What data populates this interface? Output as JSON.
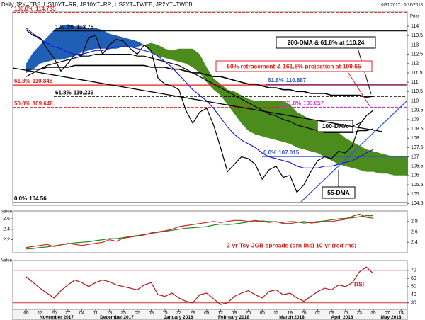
{
  "chart_data": [
    {
      "type": "line",
      "title": "Daily JPY=EBS, US10YT=RR, JP10YT=RR, US2YT=TWEB, JP2YT=TWEB",
      "subtitle": "10/31/2017 - 5/16/2018",
      "y_label": "Price",
      "categories": [
        "06",
        null,
        "13",
        null,
        "20",
        null,
        "27",
        null,
        "04",
        null,
        "11",
        null,
        "18",
        null,
        "25",
        null,
        "02",
        null,
        "08",
        null,
        "15",
        null,
        "22",
        null,
        "29",
        null,
        "05",
        null,
        "12",
        null,
        "19",
        null,
        "26",
        null,
        "05",
        null,
        "12",
        null,
        "19",
        null,
        "26",
        null,
        "02",
        null,
        "09",
        null,
        "16",
        null,
        "23",
        null,
        "30",
        null,
        "07",
        null,
        "14",
        null
      ],
      "months": [
        "November 2017",
        "December 2017",
        "January 2018",
        "February 2018",
        "March 2018",
        "April 2018",
        "May 2018"
      ],
      "ylim": [
        104.4,
        114.8
      ],
      "yticks": [
        104.5,
        105,
        105.5,
        106,
        106.5,
        107,
        107.5,
        108,
        108.5,
        109,
        109.5,
        110,
        110.5,
        111,
        111.5,
        112,
        112.5,
        113,
        113.5,
        114
      ],
      "series": [
        {
          "color": "#000000",
          "values": [
            113.8,
            113.5,
            113.4,
            112.8,
            112.3,
            111.6,
            112.0,
            112.5,
            112.4,
            113.4,
            113.5,
            112.5,
            113.0,
            113.3,
            113.2,
            112.8,
            112.5,
            113.0,
            112.7,
            111.2,
            110.9,
            110.8,
            110.6,
            109.5,
            108.8,
            109.4,
            109.6,
            108.7,
            107.5,
            106.2,
            106.6,
            107.0,
            106.9,
            106.6,
            105.8,
            106.3,
            106.5,
            105.9,
            106.0,
            105.1,
            105.5,
            106.2,
            106.8,
            107.0,
            106.9,
            107.3,
            107.2,
            107.6,
            108.7,
            109.2,
            109.5,
            null,
            null,
            null,
            null,
            null
          ]
        },
        {
          "name": "55-DMA",
          "color": "#1a1adc",
          "values": [
            113.9,
            113.6,
            113.3,
            113.1,
            112.9,
            112.8,
            112.6,
            112.5,
            112.5,
            112.6,
            112.7,
            112.7,
            112.8,
            112.9,
            112.9,
            112.9,
            112.8,
            112.7,
            112.6,
            112.4,
            112.1,
            111.8,
            111.4,
            111.0,
            110.6,
            110.3,
            110.0,
            109.6,
            109.1,
            108.6,
            108.2,
            107.9,
            107.7,
            107.5,
            107.2,
            107.0,
            106.9,
            106.8,
            106.7,
            106.5,
            106.4,
            106.4,
            106.4,
            106.5,
            106.5,
            106.6,
            106.7,
            106.8,
            107.0,
            107.2,
            107.4,
            null,
            null,
            null,
            null,
            null
          ]
        },
        {
          "name": "100-DMA",
          "color": "#000000",
          "values": [
            111.3,
            111.5,
            111.7,
            111.9,
            112.0,
            112.1,
            112.2,
            112.3,
            112.4,
            112.4,
            112.5,
            112.5,
            112.5,
            112.5,
            112.5,
            112.5,
            112.4,
            112.4,
            112.3,
            112.2,
            112.1,
            112.0,
            111.9,
            111.7,
            111.5,
            111.3,
            111.1,
            110.9,
            110.7,
            110.5,
            110.3,
            110.1,
            109.9,
            109.7,
            109.5,
            109.3,
            109.2,
            109.0,
            108.9,
            108.7,
            108.6,
            108.5,
            108.4,
            108.3,
            108.3,
            108.3,
            108.3,
            108.3,
            108.4,
            108.4,
            108.5,
            null,
            null,
            null,
            null,
            null
          ]
        },
        {
          "color": "#000000",
          "values": [
            111.7,
            111.7,
            111.7,
            111.8,
            111.8,
            111.8,
            111.8,
            111.9,
            111.9,
            111.9,
            111.9,
            111.9,
            111.9,
            111.9,
            111.9,
            111.9,
            111.9,
            111.9,
            111.8,
            111.8,
            111.8,
            111.7,
            111.7,
            111.6,
            111.5,
            111.5,
            111.4,
            111.3,
            111.3,
            111.2,
            111.1,
            111.0,
            110.9,
            110.9,
            110.8,
            110.7,
            110.7,
            110.6,
            110.6,
            110.5,
            110.5,
            110.4,
            110.4,
            110.4,
            110.3,
            110.3,
            110.3,
            110.3,
            110.3,
            110.2,
            110.24,
            null,
            null,
            null,
            null,
            null
          ]
        }
      ],
      "clouds": [
        {
          "color": "#1f5fb5",
          "upper": [
            112.0,
            112.6,
            113.0,
            113.4,
            113.8,
            114.0,
            114.1,
            114.0,
            114.0,
            113.9,
            113.9,
            113.8,
            113.6,
            113.5,
            113.4,
            113.3,
            113.2,
            113.0,
            null,
            null,
            null,
            null,
            null,
            null,
            null,
            null,
            null,
            null,
            null,
            null,
            null,
            null,
            null,
            null,
            null,
            null,
            null,
            null,
            null,
            null,
            null,
            null,
            null,
            null,
            null,
            null,
            null,
            null,
            null,
            null,
            null,
            null,
            null,
            null,
            null,
            null
          ],
          "lower": [
            111.5,
            111.7,
            112.0,
            112.1,
            112.2,
            112.2,
            112.3,
            112.4,
            112.6,
            112.7,
            112.8,
            112.8,
            112.8,
            112.8,
            112.9,
            112.9,
            112.9,
            113.0,
            null,
            null,
            null,
            null,
            null,
            null,
            null,
            null,
            null,
            null,
            null,
            null,
            null,
            null,
            null,
            null,
            null,
            null,
            null,
            null,
            null,
            null,
            null,
            null,
            null,
            null,
            null,
            null,
            null,
            null,
            null,
            null,
            null,
            null,
            null,
            null,
            null,
            null
          ]
        },
        {
          "color": "#4c8c1c",
          "upper": [
            null,
            null,
            null,
            null,
            null,
            null,
            null,
            null,
            null,
            null,
            null,
            null,
            null,
            null,
            null,
            null,
            null,
            113.0,
            113.1,
            113.0,
            112.8,
            112.7,
            112.8,
            112.8,
            112.8,
            112.5,
            111.8,
            111.2,
            110.9,
            110.6,
            110.5,
            110.3,
            110.1,
            110.0,
            110.0,
            110.0,
            110.0,
            110.0,
            109.8,
            109.4,
            109.2,
            109.0,
            108.9,
            108.7,
            108.5,
            108.3,
            108.0,
            107.8,
            107.6,
            107.4,
            107.3,
            107.2,
            107.1,
            107.0,
            107.0,
            107.0
          ],
          "lower": [
            null,
            null,
            null,
            null,
            null,
            null,
            null,
            null,
            null,
            null,
            null,
            null,
            null,
            null,
            null,
            null,
            null,
            113.0,
            112.6,
            112.4,
            112.3,
            112.2,
            112.1,
            112.0,
            111.8,
            111.5,
            111.0,
            110.6,
            110.3,
            109.8,
            109.3,
            108.8,
            108.4,
            108.2,
            108.1,
            108.0,
            107.9,
            107.8,
            107.7,
            107.5,
            107.4,
            107.3,
            107.2,
            107.0,
            106.8,
            106.6,
            106.5,
            106.4,
            106.3,
            106.2,
            106.2,
            106.1,
            106.1,
            106.0,
            106.0,
            106.0
          ]
        }
      ],
      "levels": [
        {
          "pct": "100.0%",
          "value": 114.735,
          "color": "#e02020",
          "dash": true
        },
        {
          "pct": "100.0%",
          "value": 113.75,
          "color": "#000000",
          "dash": false
        },
        {
          "pct": "61.8%",
          "value": 110.848,
          "color": "#e02020",
          "dash": false
        },
        {
          "pct": "61.8%",
          "value": 110.239,
          "color": "#000000",
          "dash": true
        },
        {
          "pct": "50.0%",
          "value": 109.648,
          "color": "#e02020",
          "dash": true
        },
        {
          "pct": "0.0%",
          "value": 104.56,
          "color": "#000000",
          "dash": false
        },
        {
          "pct": "61.8%",
          "value": 110.887,
          "color": "#3355cc",
          "dash": false
        },
        {
          "pct": "161.8%",
          "value": 109.657,
          "color": "#cc33cc",
          "dash": true
        },
        {
          "pct": "0.0%",
          "value": 107.015,
          "color": "#3355cc",
          "dash": false
        }
      ],
      "annotations": [
        "200-DMA & 61.8% at 110.24",
        "50% retracement & 161.8% projection at 109.65"
      ]
    },
    {
      "type": "line",
      "y_label": "Value",
      "annotation": "2-yr Tsy-JGB spreads (grn lhs) 10-yr (red rhs)",
      "ylim": [
        1.95,
        2.75
      ],
      "yticks": [
        2.2,
        2.4,
        2.6
      ],
      "y2lim": [
        2.2,
        3.0
      ],
      "y2ticks": [
        2.4,
        2.6,
        2.8
      ],
      "series": [
        {
          "color": "#1e8c1e",
          "values": [
            2.02,
            2.03,
            2.05,
            2.06,
            2.08,
            2.1,
            2.12,
            2.14,
            2.15,
            2.16,
            2.18,
            2.2,
            2.22,
            2.22,
            2.24,
            2.26,
            2.28,
            2.3,
            2.32,
            2.34,
            2.36,
            2.38,
            2.4,
            2.42,
            2.43,
            2.44,
            2.45,
            2.48,
            2.5,
            2.49,
            2.5,
            2.52,
            2.54,
            2.55,
            2.56,
            2.55,
            2.54,
            2.53,
            2.55,
            2.54,
            2.52,
            2.53,
            2.55,
            2.56,
            2.58,
            2.6,
            2.61,
            2.62,
            2.64,
            2.66,
            2.66,
            null,
            null,
            null,
            null,
            null
          ]
        },
        {
          "color": "#d02020",
          "axis": "y2",
          "values": [
            2.3,
            2.32,
            2.34,
            2.36,
            2.32,
            2.35,
            2.38,
            2.36,
            2.34,
            2.36,
            2.38,
            2.4,
            2.45,
            2.42,
            2.48,
            2.5,
            2.52,
            2.54,
            2.58,
            2.6,
            2.62,
            2.65,
            2.7,
            2.72,
            2.74,
            2.76,
            2.78,
            2.8,
            2.78,
            2.8,
            2.82,
            2.82,
            2.8,
            2.82,
            2.8,
            2.78,
            2.8,
            2.76,
            2.76,
            2.78,
            2.8,
            2.77,
            2.78,
            2.8,
            2.8,
            2.82,
            2.84,
            2.9,
            2.94,
            2.88,
            2.86,
            null,
            null,
            null,
            null,
            null
          ]
        }
      ]
    },
    {
      "type": "line",
      "y_label": "Value",
      "annotation": "RSI",
      "ylim": [
        22,
        82
      ],
      "yticks": [
        30,
        40,
        50,
        60,
        70
      ],
      "ref_lines": [
        70,
        30
      ],
      "ref_color": "#c83232",
      "series": [
        {
          "color": "#b01818",
          "values": [
            62,
            55,
            48,
            42,
            36,
            45,
            52,
            58,
            55,
            50,
            55,
            58,
            56,
            52,
            50,
            48,
            46,
            52,
            55,
            40,
            38,
            42,
            36,
            32,
            30,
            40,
            42,
            35,
            28,
            30,
            38,
            42,
            45,
            40,
            36,
            44,
            46,
            40,
            42,
            36,
            32,
            38,
            44,
            48,
            46,
            52,
            50,
            55,
            68,
            74,
            66,
            null,
            null,
            null,
            null,
            null
          ]
        }
      ]
    }
  ]
}
